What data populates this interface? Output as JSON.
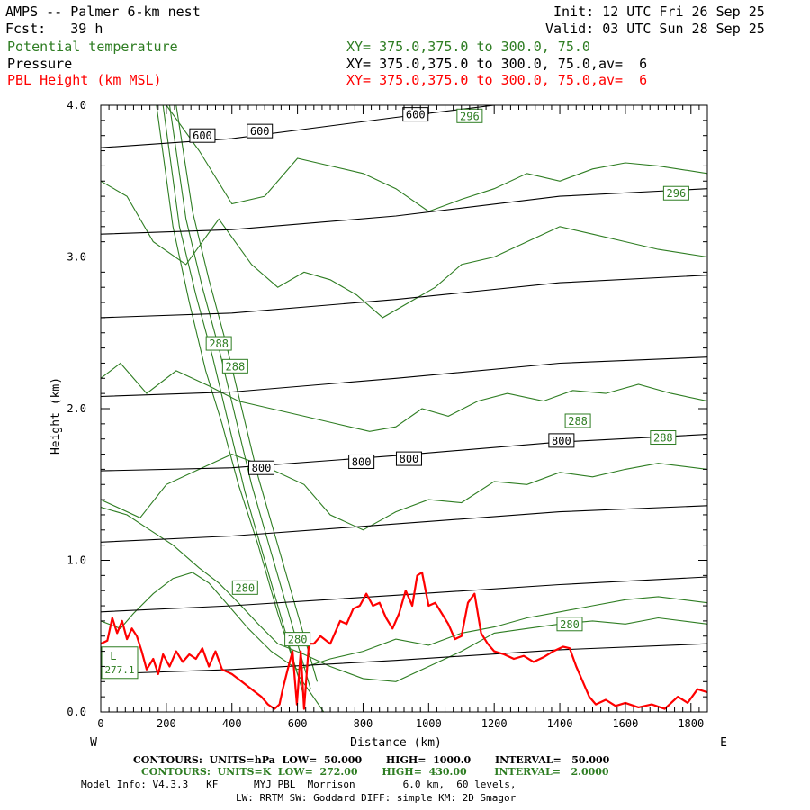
{
  "header": {
    "title": "AMPS -- Palmer 6-km nest",
    "fcst": "Fcst:   39 h",
    "init": "Init: 12 UTC Fri 26 Sep 25",
    "valid": "Valid: 03 UTC Sun 28 Sep 25",
    "field1": "Potential temperature",
    "field2": "Pressure",
    "field3": "PBL Height (km MSL)",
    "xy1": "XY= 375.0,375.0 to 300.0, 75.0",
    "xy2": "XY= 375.0,375.0 to 300.0, 75.0,av=  6",
    "xy3": "XY= 375.0,375.0 to 300.0, 75.0,av=  6"
  },
  "colors": {
    "theta": "#2e7d22",
    "pressure": "#000000",
    "pbl": "#ff0000",
    "frame": "#000000"
  },
  "footer": {
    "line1": "CONTOURS:  UNITS=hPa  LOW=  50.000       HIGH=  1000.0       INTERVAL=   50.000",
    "line2": "CONTOURS:  UNITS=K  LOW=  272.00       HIGH=  430.00        INTERVAL=   2.0000",
    "line3": "Model Info: V4.3.3   KF      MYJ PBL  Morrison        6.0 km,  60 levels,",
    "line4": "LW: RRTM SW: Goddard DIFF: simple KM: 2D Smagor"
  },
  "chart_data": {
    "type": "line",
    "title": "AMPS -- Palmer 6-km nest",
    "xlabel": "Distance (km)",
    "ylabel": "Height (km)",
    "xlim": [
      0,
      1850
    ],
    "ylim": [
      0,
      4.0
    ],
    "x_ticks": [
      "0",
      "200",
      "400",
      "600",
      "800",
      "1000",
      "1200",
      "1400",
      "1600",
      "1800"
    ],
    "x_tick_values": [
      0,
      200,
      400,
      600,
      800,
      1000,
      1200,
      1400,
      1600,
      1800
    ],
    "y_ticks": [
      "0.0",
      "1.0",
      "2.0",
      "3.0",
      "4.0"
    ],
    "y_tick_values": [
      0,
      1,
      2,
      3,
      4
    ],
    "end_left": "W",
    "end_right": "E",
    "pressure_contours": [
      {
        "level": 950,
        "x": [
          0,
          400,
          900,
          1400,
          1850
        ],
        "y": [
          0.25,
          0.28,
          0.34,
          0.41,
          0.45
        ]
      },
      {
        "level": 900,
        "x": [
          0,
          400,
          900,
          1400,
          1850
        ],
        "y": [
          0.66,
          0.7,
          0.77,
          0.84,
          0.89
        ]
      },
      {
        "level": 850,
        "x": [
          0,
          400,
          900,
          1400,
          1850
        ],
        "y": [
          1.12,
          1.16,
          1.24,
          1.32,
          1.36
        ]
      },
      {
        "level": 800,
        "x": [
          0,
          400,
          900,
          1400,
          1850
        ],
        "y": [
          1.59,
          1.61,
          1.69,
          1.78,
          1.83
        ]
      },
      {
        "level": 750,
        "x": [
          0,
          400,
          900,
          1400,
          1850
        ],
        "y": [
          2.08,
          2.11,
          2.2,
          2.3,
          2.34
        ]
      },
      {
        "level": 700,
        "x": [
          0,
          400,
          900,
          1400,
          1850
        ],
        "y": [
          2.6,
          2.63,
          2.72,
          2.83,
          2.88
        ]
      },
      {
        "level": 650,
        "x": [
          0,
          400,
          900,
          1400,
          1850
        ],
        "y": [
          3.15,
          3.18,
          3.27,
          3.4,
          3.45
        ]
      },
      {
        "level": 600,
        "x": [
          0,
          400,
          900,
          1200,
          1850
        ],
        "y": [
          3.72,
          3.78,
          3.92,
          4.0,
          4.0
        ]
      }
    ],
    "pressure_labels": [
      {
        "text": "600",
        "x": 310,
        "y": 3.8
      },
      {
        "text": "600",
        "x": 485,
        "y": 3.83
      },
      {
        "text": "600",
        "x": 960,
        "y": 3.94
      },
      {
        "text": "800",
        "x": 490,
        "y": 1.61
      },
      {
        "text": "800",
        "x": 795,
        "y": 1.65
      },
      {
        "text": "800",
        "x": 940,
        "y": 1.67
      },
      {
        "text": "800",
        "x": 1405,
        "y": 1.79
      }
    ],
    "theta_contours": [
      {
        "x": [
          0,
          60,
          100,
          160,
          220,
          280,
          330,
          390,
          450,
          520,
          600,
          700,
          800,
          900,
          1000,
          1100,
          1200,
          1300,
          1400,
          1500,
          1600,
          1700,
          1850
        ],
        "y": [
          0.6,
          0.55,
          0.65,
          0.78,
          0.88,
          0.92,
          0.85,
          0.7,
          0.55,
          0.4,
          0.28,
          0.35,
          0.4,
          0.48,
          0.44,
          0.52,
          0.56,
          0.62,
          0.66,
          0.7,
          0.74,
          0.76,
          0.72
        ]
      },
      {
        "x": [
          0,
          80,
          150,
          220,
          300,
          360,
          420,
          480,
          540,
          620,
          700,
          800,
          900,
          1000,
          1100,
          1200,
          1300,
          1400,
          1500,
          1600,
          1700,
          1850
        ],
        "y": [
          1.35,
          1.3,
          1.2,
          1.1,
          0.95,
          0.85,
          0.72,
          0.58,
          0.45,
          0.38,
          0.3,
          0.22,
          0.2,
          0.3,
          0.4,
          0.52,
          0.55,
          0.58,
          0.6,
          0.58,
          0.62,
          0.58
        ]
      },
      {
        "x": [
          0,
          120,
          200,
          300,
          400,
          500,
          620,
          700,
          800,
          900,
          1000,
          1100,
          1200,
          1300,
          1400,
          1500,
          1600,
          1700,
          1850
        ],
        "y": [
          1.4,
          1.28,
          1.5,
          1.6,
          1.7,
          1.62,
          1.5,
          1.3,
          1.2,
          1.32,
          1.4,
          1.38,
          1.52,
          1.5,
          1.58,
          1.55,
          1.6,
          1.64,
          1.6
        ]
      },
      {
        "x": [
          0,
          60,
          140,
          230,
          330,
          420,
          520,
          620,
          720,
          820,
          900,
          980,
          1060,
          1150,
          1240,
          1350,
          1440,
          1540,
          1640,
          1740,
          1850
        ],
        "y": [
          2.2,
          2.3,
          2.1,
          2.25,
          2.15,
          2.05,
          2.0,
          1.95,
          1.9,
          1.85,
          1.88,
          2.0,
          1.95,
          2.05,
          2.1,
          2.05,
          2.12,
          2.1,
          2.16,
          2.1,
          2.05
        ]
      },
      {
        "x": [
          0,
          80,
          160,
          260,
          360,
          460,
          540,
          620,
          700,
          780,
          860,
          940,
          1020,
          1100,
          1200,
          1300,
          1400,
          1500,
          1600,
          1700,
          1850
        ],
        "y": [
          3.5,
          3.4,
          3.1,
          2.95,
          3.25,
          2.95,
          2.8,
          2.9,
          2.85,
          2.75,
          2.6,
          2.7,
          2.8,
          2.95,
          3.0,
          3.1,
          3.2,
          3.15,
          3.1,
          3.05,
          3.0
        ]
      },
      {
        "x": [
          200,
          300,
          400,
          500,
          600,
          700,
          800,
          900,
          1000,
          1100,
          1200,
          1300,
          1400,
          1500,
          1600,
          1700,
          1850
        ],
        "y": [
          4.0,
          3.7,
          3.35,
          3.4,
          3.65,
          3.6,
          3.55,
          3.45,
          3.3,
          3.38,
          3.45,
          3.55,
          3.5,
          3.58,
          3.62,
          3.6,
          3.55
        ]
      },
      {
        "x": [
          170,
          220,
          270,
          320,
          370,
          420,
          480,
          540,
          600,
          680
        ],
        "y": [
          4.0,
          3.2,
          2.7,
          2.25,
          1.9,
          1.5,
          1.1,
          0.65,
          0.25,
          0.0
        ]
      },
      {
        "x": [
          190,
          240,
          290,
          340,
          390,
          440,
          500,
          560,
          620
        ],
        "y": [
          4.0,
          3.2,
          2.75,
          2.35,
          1.9,
          1.45,
          1.0,
          0.55,
          0.1
        ]
      },
      {
        "x": [
          210,
          260,
          310,
          360,
          410,
          460,
          520,
          580,
          640
        ],
        "y": [
          4.0,
          3.25,
          2.8,
          2.4,
          1.95,
          1.5,
          1.05,
          0.6,
          0.15
        ]
      },
      {
        "x": [
          230,
          280,
          330,
          380,
          430,
          480,
          540,
          600,
          660
        ],
        "y": [
          4.0,
          3.3,
          2.85,
          2.45,
          2.0,
          1.55,
          1.1,
          0.65,
          0.2
        ]
      }
    ],
    "theta_labels": [
      {
        "text": "296",
        "x": 1125,
        "y": 3.93
      },
      {
        "text": "296",
        "x": 1755,
        "y": 3.42
      },
      {
        "text": "288",
        "x": 360,
        "y": 2.43
      },
      {
        "text": "288",
        "x": 410,
        "y": 2.28
      },
      {
        "text": "288",
        "x": 1455,
        "y": 1.92
      },
      {
        "text": "288",
        "x": 1715,
        "y": 1.81
      },
      {
        "text": "280",
        "x": 440,
        "y": 0.82
      },
      {
        "text": "280",
        "x": 600,
        "y": 0.48
      },
      {
        "text": "280",
        "x": 1430,
        "y": 0.58
      }
    ],
    "low_marker": {
      "text": "L",
      "value": "277.1",
      "x": 60,
      "y": 0.31
    },
    "series": [
      {
        "name": "PBL Height (km MSL)",
        "x": [
          0,
          20,
          35,
          50,
          65,
          80,
          95,
          110,
          125,
          140,
          160,
          175,
          190,
          210,
          230,
          250,
          270,
          290,
          310,
          330,
          350,
          370,
          400,
          430,
          460,
          490,
          510,
          530,
          545,
          555,
          570,
          585,
          598,
          610,
          620,
          635,
          650,
          670,
          700,
          730,
          750,
          770,
          790,
          810,
          830,
          850,
          870,
          890,
          910,
          930,
          950,
          965,
          980,
          1000,
          1020,
          1040,
          1060,
          1080,
          1100,
          1120,
          1140,
          1160,
          1180,
          1200,
          1230,
          1260,
          1290,
          1320,
          1350,
          1380,
          1410,
          1430,
          1450,
          1470,
          1490,
          1510,
          1540,
          1570,
          1600,
          1640,
          1680,
          1720,
          1760,
          1790,
          1820,
          1850
        ],
        "y": [
          0.45,
          0.47,
          0.62,
          0.52,
          0.6,
          0.48,
          0.55,
          0.5,
          0.4,
          0.28,
          0.35,
          0.25,
          0.38,
          0.3,
          0.4,
          0.33,
          0.38,
          0.35,
          0.42,
          0.3,
          0.4,
          0.28,
          0.25,
          0.2,
          0.15,
          0.1,
          0.05,
          0.02,
          0.05,
          0.15,
          0.28,
          0.4,
          0.05,
          0.4,
          0.02,
          0.45,
          0.45,
          0.5,
          0.45,
          0.6,
          0.58,
          0.68,
          0.7,
          0.78,
          0.7,
          0.72,
          0.62,
          0.55,
          0.65,
          0.8,
          0.7,
          0.9,
          0.92,
          0.7,
          0.72,
          0.65,
          0.58,
          0.48,
          0.5,
          0.72,
          0.78,
          0.52,
          0.45,
          0.4,
          0.38,
          0.35,
          0.37,
          0.33,
          0.36,
          0.4,
          0.43,
          0.42,
          0.3,
          0.2,
          0.1,
          0.05,
          0.08,
          0.04,
          0.06,
          0.03,
          0.05,
          0.02,
          0.1,
          0.06,
          0.15,
          0.13
        ]
      }
    ]
  }
}
